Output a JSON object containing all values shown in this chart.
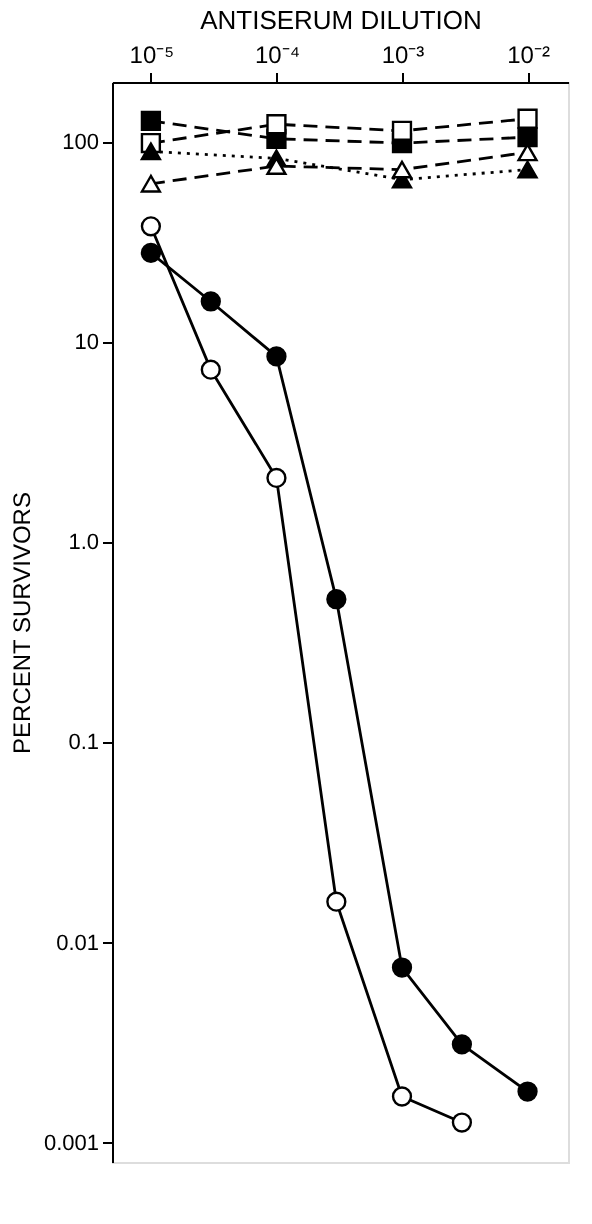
{
  "chart_data": {
    "type": "line",
    "xlabel": "ANTISERUM DILUTION",
    "ylabel": "PERCENT SURVIVORS",
    "log": "xy",
    "grid": false,
    "xlim": [
      4.9e-06,
      0.021
    ],
    "xticks": [
      {
        "value": 1e-05,
        "label": "10⁻⁵"
      },
      {
        "value": 0.0001,
        "label": "10⁻⁴"
      },
      {
        "value": 0.001,
        "label": "10⁻³"
      },
      {
        "value": 0.01,
        "label": "10⁻²"
      }
    ],
    "ylim": [
      0.0008,
      200
    ],
    "yticks": [
      0.001,
      0.01,
      0.1,
      {
        "value": 1,
        "label": "1.0"
      },
      10,
      100
    ],
    "series": [
      {
        "color": "#000000",
        "marker": "square",
        "line_style": "dashed",
        "x": [
          1e-05,
          0.0001,
          0.001,
          0.01
        ],
        "values": [
          128,
          104,
          99,
          106
        ]
      },
      {
        "color": "#ffffff",
        "marker": "square",
        "line_style": "dashed",
        "x": [
          1e-05,
          0.0001,
          0.001,
          0.01
        ],
        "values": [
          99,
          123,
          114,
          131
        ]
      },
      {
        "color": "#000000",
        "marker": "triangle",
        "line_style": "dotted",
        "x": [
          1e-05,
          0.0001,
          0.001,
          0.01
        ],
        "values": [
          90,
          83,
          65,
          73
        ]
      },
      {
        "color": "#ffffff",
        "marker": "triangle",
        "line_style": "dashed",
        "x": [
          1e-05,
          0.0001,
          0.001,
          0.01
        ],
        "values": [
          62,
          76,
          73,
          89
        ]
      },
      {
        "color": "#000000",
        "marker": "circle",
        "line_style": "solid",
        "x": [
          1e-05,
          3e-05,
          0.0001,
          0.0003,
          0.001,
          0.003,
          0.01
        ],
        "values": [
          28,
          16,
          8.5,
          0.52,
          0.0075,
          0.0031,
          0.0018
        ]
      },
      {
        "color": "#ffffff",
        "marker": "circle",
        "line_style": "solid",
        "x": [
          1e-05,
          3e-05,
          0.0001,
          0.0003,
          0.001,
          0.003
        ],
        "values": [
          38,
          7.3,
          2.1,
          0.016,
          0.0017,
          0.00126
        ]
      }
    ]
  }
}
